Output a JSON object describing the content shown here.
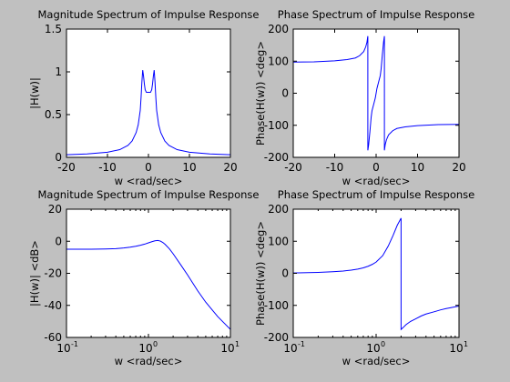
{
  "figure": {
    "background": "#c0c0c0",
    "axes_bg": "#ffffff",
    "line_color": "#0000ff"
  },
  "chart_data": [
    {
      "type": "line",
      "title": "Magnitude Spectrum of Impulse Response",
      "xlabel": "w <rad/sec>",
      "ylabel": "|H(w)|",
      "xscale": "linear",
      "yscale": "linear",
      "xlim": [
        -20,
        20
      ],
      "ylim": [
        0,
        1.5
      ],
      "xticks": [
        -20,
        -10,
        0,
        10,
        20
      ],
      "xtick_labels": [
        "-20",
        "-10",
        "0",
        "10",
        "20"
      ],
      "yticks": [
        0,
        0.5,
        1,
        1.5
      ],
      "ytick_labels": [
        "0",
        "0.5",
        "1",
        "1.5"
      ],
      "grid": false,
      "series": [
        {
          "x": [
            -20,
            -15,
            -10,
            -7,
            -5,
            -4,
            -3,
            -2.5,
            -2,
            -1.8,
            -1.6,
            -1.4,
            -1.2,
            -1,
            -0.8,
            -0.5,
            0,
            0.5,
            0.8,
            1,
            1.2,
            1.4,
            1.6,
            1.8,
            2,
            2.5,
            3,
            4,
            5,
            7,
            10,
            15,
            20
          ],
          "y": [
            0.03,
            0.04,
            0.06,
            0.09,
            0.14,
            0.19,
            0.29,
            0.38,
            0.55,
            0.7,
            0.88,
            1.02,
            0.95,
            0.86,
            0.79,
            0.76,
            0.76,
            0.76,
            0.79,
            0.86,
            0.95,
            1.02,
            0.88,
            0.7,
            0.55,
            0.38,
            0.29,
            0.19,
            0.14,
            0.09,
            0.06,
            0.04,
            0.03
          ]
        }
      ]
    },
    {
      "type": "line",
      "title": "Phase Spectrum of Impulse Response",
      "xlabel": "w <rad/sec>",
      "ylabel": "Phase(H(w)) <deg>",
      "xscale": "linear",
      "yscale": "linear",
      "xlim": [
        -20,
        20
      ],
      "ylim": [
        -200,
        200
      ],
      "xticks": [
        -20,
        -10,
        0,
        10,
        20
      ],
      "xtick_labels": [
        "-20",
        "-10",
        "0",
        "10",
        "20"
      ],
      "yticks": [
        -200,
        -100,
        0,
        100,
        200
      ],
      "ytick_labels": [
        "-200",
        "-100",
        "0",
        "100",
        "200"
      ],
      "grid": false,
      "series": [
        {
          "x": [
            -20,
            -15,
            -10,
            -7,
            -5,
            -4,
            -3,
            -2.5,
            -2.2,
            -2.0,
            -2.0,
            -1.8,
            -1.5,
            -1.2,
            -1.0,
            -0.6,
            -0.2,
            0,
            0.2,
            0.6,
            1.0,
            1.2,
            1.5,
            1.8,
            2.0,
            2.0,
            2.2,
            2.5,
            3,
            4,
            5,
            7,
            10,
            15,
            20
          ],
          "y": [
            97,
            98,
            101,
            105,
            110,
            117,
            130,
            145,
            160,
            178,
            -178,
            -160,
            -120,
            -75,
            -55,
            -35,
            -15,
            0,
            15,
            35,
            55,
            75,
            120,
            160,
            178,
            -178,
            -160,
            -145,
            -130,
            -117,
            -110,
            -105,
            -101,
            -98,
            -97
          ]
        }
      ]
    },
    {
      "type": "line",
      "title": "Magnitude Spectrum of Impulse Response",
      "xlabel": "w <rad/sec>",
      "ylabel": "|H(w)| <dB>",
      "xscale": "log",
      "yscale": "linear",
      "xlim": [
        0.1,
        10
      ],
      "ylim": [
        -60,
        20
      ],
      "xticks": [
        0.1,
        1,
        10
      ],
      "xtick_labels": [
        [
          "10",
          "-1"
        ],
        [
          "10",
          "0"
        ],
        [
          "10",
          "1"
        ]
      ],
      "yticks": [
        -60,
        -40,
        -20,
        0,
        20
      ],
      "ytick_labels": [
        "-60",
        "-40",
        "-20",
        "0",
        "20"
      ],
      "grid": false,
      "series": [
        {
          "x": [
            0.1,
            0.15,
            0.2,
            0.3,
            0.4,
            0.5,
            0.6,
            0.7,
            0.8,
            0.9,
            1.0,
            1.1,
            1.2,
            1.3,
            1.4,
            1.5,
            1.6,
            1.8,
            2.0,
            2.5,
            3.0,
            4.0,
            5.0,
            7.0,
            10.0
          ],
          "y": [
            -5,
            -5,
            -5,
            -4.8,
            -4.6,
            -4.2,
            -3.7,
            -3.1,
            -2.5,
            -1.8,
            -1.0,
            -0.3,
            0.3,
            0.5,
            0.1,
            -0.8,
            -2,
            -4.7,
            -7.8,
            -15,
            -21,
            -31,
            -38,
            -47,
            -55
          ]
        }
      ]
    },
    {
      "type": "line",
      "title": "Phase Spectrum of Impulse Response",
      "xlabel": "w <rad/sec>",
      "ylabel": "Phase(H(w)) <deg>",
      "xscale": "log",
      "yscale": "linear",
      "xlim": [
        0.1,
        10
      ],
      "ylim": [
        -200,
        200
      ],
      "xticks": [
        0.1,
        1,
        10
      ],
      "xtick_labels": [
        [
          "10",
          "-1"
        ],
        [
          "10",
          "0"
        ],
        [
          "10",
          "1"
        ]
      ],
      "yticks": [
        -200,
        -100,
        0,
        100,
        200
      ],
      "ytick_labels": [
        "-200",
        "-100",
        "0",
        "100",
        "200"
      ],
      "grid": false,
      "series": [
        {
          "x": [
            0.1,
            0.15,
            0.2,
            0.3,
            0.4,
            0.5,
            0.6,
            0.7,
            0.8,
            0.9,
            1.0,
            1.2,
            1.4,
            1.6,
            1.8,
            2.0,
            2.0,
            2.1,
            2.3,
            2.6,
            3.0,
            3.5,
            4.0,
            5.0,
            6.0,
            7.0,
            8.0,
            10.0
          ],
          "y": [
            1,
            2,
            3,
            5,
            7,
            10,
            13,
            17,
            22,
            28,
            35,
            55,
            85,
            118,
            150,
            172,
            -175,
            -170,
            -160,
            -150,
            -142,
            -133,
            -127,
            -120,
            -114,
            -110,
            -107,
            -102
          ]
        }
      ]
    }
  ]
}
